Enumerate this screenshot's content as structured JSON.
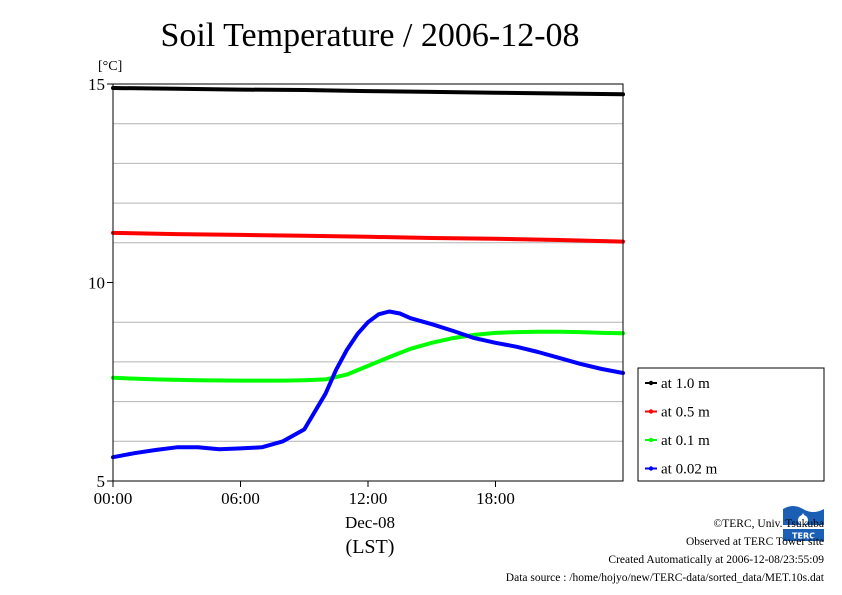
{
  "chart_data": {
    "type": "line",
    "title": "Soil Temperature / 2006-12-08",
    "ylabel_unit": "[°C]",
    "ylim": [
      5,
      15
    ],
    "y_ticks": [
      {
        "value": 5,
        "label": "5"
      },
      {
        "value": 10,
        "label": "10"
      },
      {
        "value": 15,
        "label": "15"
      }
    ],
    "y_grid": [
      6,
      7,
      8,
      9,
      11,
      12,
      13,
      14
    ],
    "xlim": [
      0,
      24
    ],
    "x_ticks": [
      {
        "value": 0,
        "label": "00:00"
      },
      {
        "value": 6,
        "label": "06:00"
      },
      {
        "value": 12,
        "label": "12:00"
      },
      {
        "value": 18,
        "label": "18:00"
      }
    ],
    "x_date_label": "Dec-08",
    "xlabel": "(LST)",
    "grid": true,
    "legend_position": "right",
    "series": [
      {
        "name": "at 1.0 m",
        "color": "#000000",
        "x": [
          0,
          3,
          6,
          9,
          12,
          15,
          18,
          21,
          24
        ],
        "y": [
          14.9,
          14.88,
          14.86,
          14.85,
          14.82,
          14.8,
          14.78,
          14.76,
          14.74
        ]
      },
      {
        "name": "at 0.5 m",
        "color": "#ff0000",
        "x": [
          0,
          3,
          6,
          9,
          12,
          15,
          18,
          21,
          24
        ],
        "y": [
          11.25,
          11.22,
          11.2,
          11.18,
          11.15,
          11.12,
          11.1,
          11.07,
          11.03
        ]
      },
      {
        "name": "at 0.1 m",
        "color": "#00ff00",
        "x": [
          0,
          2,
          4,
          6,
          8,
          9,
          10,
          11,
          12,
          13,
          14,
          15,
          16,
          17,
          18,
          19,
          20,
          21,
          22,
          23,
          24
        ],
        "y": [
          7.6,
          7.56,
          7.54,
          7.53,
          7.53,
          7.54,
          7.56,
          7.68,
          7.9,
          8.12,
          8.33,
          8.48,
          8.6,
          8.68,
          8.73,
          8.75,
          8.76,
          8.76,
          8.75,
          8.73,
          8.72
        ]
      },
      {
        "name": "at 0.02 m",
        "color": "#0000ff",
        "x": [
          0,
          1,
          2,
          3,
          4,
          5,
          6,
          7,
          8,
          9,
          10,
          10.5,
          11,
          11.5,
          12,
          12.5,
          13,
          13.5,
          14,
          15,
          16,
          17,
          18,
          19,
          20,
          21,
          22,
          23,
          24
        ],
        "y": [
          5.6,
          5.7,
          5.78,
          5.85,
          5.85,
          5.8,
          5.82,
          5.85,
          6.0,
          6.3,
          7.2,
          7.8,
          8.3,
          8.7,
          9.0,
          9.2,
          9.27,
          9.22,
          9.1,
          8.95,
          8.78,
          8.6,
          8.48,
          8.38,
          8.25,
          8.1,
          7.95,
          7.82,
          7.72
        ]
      }
    ]
  },
  "footer": {
    "copyright": "©TERC, Univ. Tsukuba",
    "observed": "Observed at TERC Tower site",
    "created": "Created Automatically at 2006-12-08/23:55:09",
    "source": "Data source : /home/hojyo/new/TERC-data/sorted_data/MET.10s.dat"
  },
  "logo": {
    "text": "TERC",
    "color": "#1a5fb4"
  }
}
